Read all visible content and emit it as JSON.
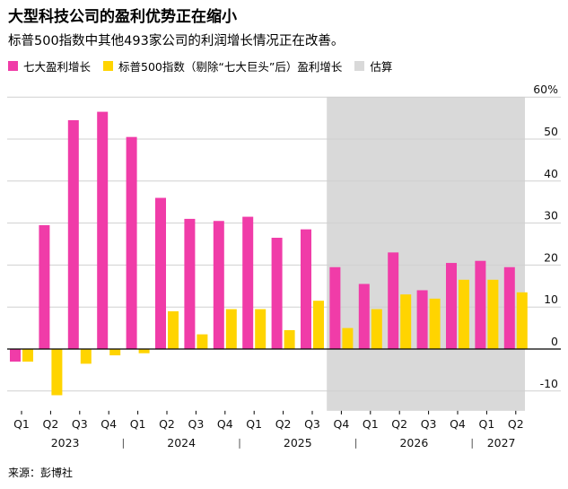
{
  "title": "大型科技公司的盈利优势正在缩小",
  "subtitle": "标普500指数中其他493家公司的利润增长情况正在改善。",
  "legend": {
    "magnificent7": "七大盈利增长",
    "sp493": "标普500指数（剔除“七大巨头”后）盈利增长",
    "estimate": "估算"
  },
  "source": "来源：彭博社",
  "colors": {
    "magnificent7": "#f03ca8",
    "sp493": "#ffd400",
    "estimate": "#d9d9d9"
  },
  "chart_data": {
    "type": "bar",
    "title": "大型科技公司的盈利优势正在缩小",
    "ylabel": "",
    "ylim": [
      -13,
      60
    ],
    "yticks": [
      -10,
      0,
      10,
      20,
      30,
      40,
      50,
      60
    ],
    "ytick_labels": [
      "-10",
      "0",
      "10",
      "20",
      "30",
      "40",
      "50",
      "60%"
    ],
    "grid": true,
    "categories": [
      "Q1",
      "Q2",
      "Q3",
      "Q4",
      "Q1",
      "Q2",
      "Q3",
      "Q4",
      "Q1",
      "Q2",
      "Q3",
      "Q4",
      "Q1",
      "Q2",
      "Q3",
      "Q4",
      "Q1",
      "Q2"
    ],
    "years": [
      {
        "label": "2023",
        "start": 0,
        "end": 3
      },
      {
        "label": "2024",
        "start": 4,
        "end": 7
      },
      {
        "label": "2025",
        "start": 8,
        "end": 11
      },
      {
        "label": "2026",
        "start": 12,
        "end": 15
      },
      {
        "label": "2027",
        "start": 16,
        "end": 17
      }
    ],
    "year_separators": [
      3.5,
      7.5,
      11.5,
      15.5
    ],
    "estimate_start_index": 11,
    "series": [
      {
        "name": "七大盈利增长",
        "values": [
          -3,
          29.5,
          54.5,
          56.5,
          50.5,
          36,
          31,
          30.5,
          31.5,
          26.5,
          28.5,
          19.5,
          15.5,
          23,
          14,
          20.5,
          21,
          19.5
        ]
      },
      {
        "name": "标普500指数（剔除“七大巨头”后）盈利增长",
        "values": [
          -3,
          -11,
          -3.5,
          -1.5,
          -1,
          9,
          3.5,
          9.5,
          9.5,
          4.5,
          11.5,
          5,
          9.5,
          13,
          12,
          16.5,
          16.5,
          13.5
        ]
      }
    ]
  }
}
